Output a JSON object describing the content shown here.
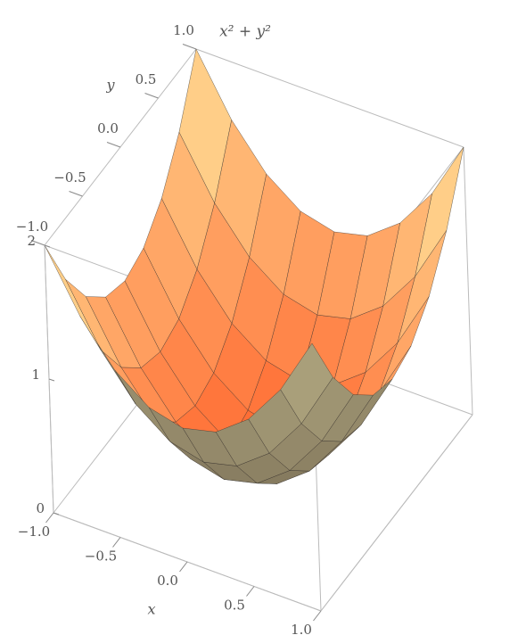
{
  "chart_data": {
    "type": "surface",
    "title": "x² + y²",
    "x_label": "x",
    "y_label": "y",
    "x": [
      -1,
      -0.75,
      -0.5,
      -0.25,
      0,
      0.25,
      0.5,
      0.75,
      1
    ],
    "y": [
      -1,
      -0.75,
      -0.5,
      -0.25,
      0,
      0.25,
      0.5,
      0.75,
      1
    ],
    "z": [
      [
        2,
        1.5625,
        1.25,
        1.0625,
        1,
        1.0625,
        1.25,
        1.5625,
        2
      ],
      [
        1.5625,
        1.125,
        0.8125,
        0.625,
        0.5625,
        0.625,
        0.8125,
        1.125,
        1.5625
      ],
      [
        1.25,
        0.8125,
        0.5,
        0.3125,
        0.25,
        0.3125,
        0.5,
        0.8125,
        1.25
      ],
      [
        1.0625,
        0.625,
        0.3125,
        0.125,
        0.0625,
        0.125,
        0.3125,
        0.625,
        1.0625
      ],
      [
        1,
        0.5625,
        0.25,
        0.0625,
        0,
        0.0625,
        0.25,
        0.5625,
        1
      ],
      [
        1.0625,
        0.625,
        0.3125,
        0.125,
        0.0625,
        0.125,
        0.3125,
        0.625,
        1.0625
      ],
      [
        1.25,
        0.8125,
        0.5,
        0.3125,
        0.25,
        0.3125,
        0.5,
        0.8125,
        1.25
      ],
      [
        1.5625,
        1.125,
        0.8125,
        0.625,
        0.5625,
        0.625,
        0.8125,
        1.125,
        1.5625
      ],
      [
        2,
        1.5625,
        1.25,
        1.0625,
        1,
        1.0625,
        1.25,
        1.5625,
        2
      ]
    ],
    "xlim": [
      -1,
      1
    ],
    "ylim": [
      -1,
      1
    ],
    "zlim": [
      0,
      2
    ],
    "xticks": [
      {
        "value": -1,
        "label": "−1.0"
      },
      {
        "value": -0.5,
        "label": "−0.5"
      },
      {
        "value": 0,
        "label": "0.0"
      },
      {
        "value": 0.5,
        "label": "0.5"
      },
      {
        "value": 1,
        "label": "1.0"
      }
    ],
    "yticks": [
      {
        "value": -1,
        "label": "−1.0"
      },
      {
        "value": -0.5,
        "label": "−0.5"
      },
      {
        "value": 0,
        "label": "0.0"
      },
      {
        "value": 0.5,
        "label": "0.5"
      },
      {
        "value": 1,
        "label": "1.0"
      }
    ],
    "zticks": [
      0,
      1,
      2
    ],
    "front_colors": [
      "#ff6a32",
      "#ffeaa0"
    ],
    "back_colors": [
      "#7d7258",
      "#b5ab84"
    ],
    "mesh_color": "#2a2a2a",
    "box_color": "#bbbbbb"
  }
}
